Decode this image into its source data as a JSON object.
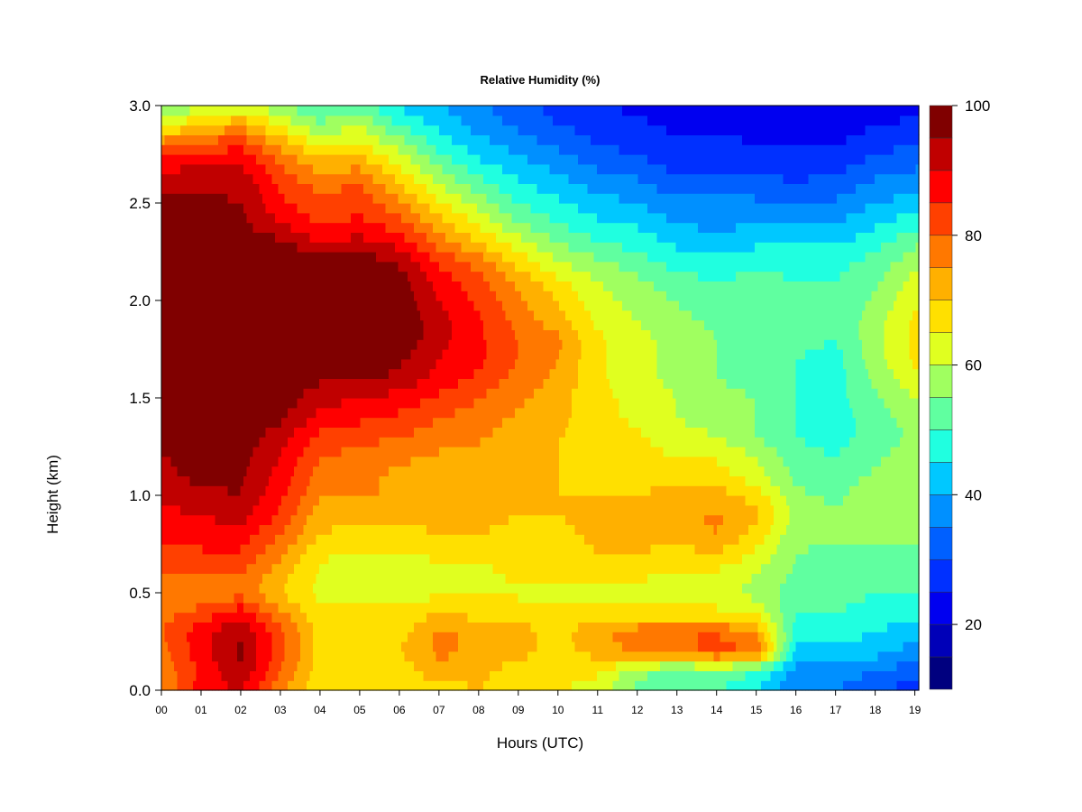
{
  "chart_data": {
    "type": "heatmap",
    "title": "Relative Humidity (%)",
    "xlabel": "Hours (UTC)",
    "ylabel": "Height (km)",
    "xlim": [
      0,
      19.1
    ],
    "ylim": [
      0.0,
      3.0
    ],
    "x_tick_labels": [
      "00",
      "01",
      "02",
      "03",
      "04",
      "05",
      "06",
      "07",
      "08",
      "09",
      "10",
      "11",
      "12",
      "13",
      "14",
      "15",
      "16",
      "17",
      "18",
      "19"
    ],
    "y_tick_labels": [
      "0.0",
      "0.5",
      "1.0",
      "1.5",
      "2.0",
      "2.5",
      "3.0"
    ],
    "colorbar": {
      "range": [
        10,
        100
      ],
      "step": 5,
      "tick_values": [
        20,
        40,
        60,
        80,
        100
      ],
      "tick_labels": [
        "20",
        "40",
        "60",
        "80",
        "100"
      ],
      "colors": [
        "#00007F",
        "#0000B8",
        "#0000F0",
        "#0030FF",
        "#0060FF",
        "#0090FF",
        "#00C8FF",
        "#20FFE0",
        "#60FFA0",
        "#A0FF60",
        "#E0FF20",
        "#FFE000",
        "#FFB000",
        "#FF7800",
        "#FF4000",
        "#FF0000",
        "#C00000",
        "#800000"
      ]
    },
    "heights_km": [
      0.0,
      0.1,
      0.2,
      0.3,
      0.4,
      0.5,
      0.6,
      0.7,
      0.8,
      0.9,
      1.0,
      1.1,
      1.2,
      1.3,
      1.4,
      1.5,
      1.6,
      1.7,
      1.8,
      1.9,
      2.0,
      2.1,
      2.2,
      2.3,
      2.4,
      2.5,
      2.6,
      2.7,
      2.8,
      2.9,
      3.0
    ],
    "hours_utc": [
      0,
      1,
      2,
      3,
      4,
      5,
      6,
      7,
      8,
      9,
      10,
      11,
      12,
      13,
      14,
      15,
      16,
      17,
      18,
      19
    ],
    "rh_percent": [
      [
        75,
        88,
        90,
        76,
        66,
        70,
        66,
        67,
        70,
        66,
        66,
        62,
        54,
        50,
        50,
        45,
        35,
        35,
        30,
        28
      ],
      [
        76,
        86,
        95,
        80,
        67,
        70,
        66,
        74,
        72,
        67,
        66,
        66,
        57,
        52,
        55,
        50,
        38,
        38,
        35,
        32
      ],
      [
        78,
        88,
        96,
        82,
        68,
        69,
        70,
        76,
        74,
        72,
        68,
        72,
        76,
        78,
        82,
        80,
        44,
        42,
        42,
        38
      ],
      [
        80,
        88,
        95,
        82,
        68,
        68,
        68,
        76,
        74,
        72,
        68,
        74,
        78,
        80,
        80,
        74,
        48,
        48,
        45,
        42
      ],
      [
        78,
        82,
        88,
        76,
        66,
        66,
        66,
        70,
        68,
        68,
        66,
        68,
        66,
        66,
        66,
        64,
        50,
        50,
        48,
        46
      ],
      [
        74,
        76,
        78,
        70,
        64,
        62,
        62,
        64,
        64,
        64,
        64,
        64,
        64,
        62,
        62,
        58,
        52,
        52,
        50,
        50
      ],
      [
        80,
        80,
        80,
        72,
        64,
        62,
        62,
        64,
        64,
        66,
        66,
        66,
        66,
        64,
        64,
        60,
        54,
        52,
        52,
        52
      ],
      [
        82,
        84,
        84,
        76,
        66,
        64,
        64,
        66,
        66,
        66,
        66,
        70,
        70,
        68,
        70,
        64,
        55,
        54,
        54,
        54
      ],
      [
        86,
        88,
        88,
        80,
        70,
        68,
        68,
        70,
        70,
        68,
        68,
        72,
        72,
        72,
        75,
        68,
        56,
        56,
        56,
        56
      ],
      [
        88,
        90,
        92,
        84,
        72,
        72,
        72,
        72,
        72,
        70,
        70,
        72,
        72,
        74,
        76,
        72,
        58,
        56,
        56,
        56
      ],
      [
        92,
        94,
        95,
        86,
        76,
        75,
        75,
        72,
        72,
        70,
        70,
        70,
        70,
        72,
        72,
        68,
        56,
        54,
        58,
        60
      ],
      [
        94,
        96,
        96,
        88,
        78,
        76,
        74,
        72,
        72,
        70,
        70,
        68,
        68,
        68,
        68,
        62,
        54,
        52,
        56,
        58
      ],
      [
        95,
        96,
        97,
        90,
        80,
        78,
        76,
        74,
        72,
        70,
        70,
        68,
        68,
        64,
        64,
        60,
        52,
        50,
        54,
        58
      ],
      [
        96,
        98,
        98,
        92,
        84,
        82,
        80,
        78,
        76,
        72,
        70,
        68,
        66,
        62,
        60,
        55,
        50,
        48,
        52,
        56
      ],
      [
        98,
        99,
        99,
        96,
        88,
        86,
        84,
        80,
        78,
        74,
        72,
        66,
        64,
        60,
        58,
        55,
        50,
        48,
        52,
        58
      ],
      [
        99,
        100,
        100,
        98,
        92,
        90,
        88,
        84,
        80,
        76,
        72,
        66,
        64,
        60,
        56,
        55,
        50,
        48,
        54,
        60
      ],
      [
        100,
        100,
        100,
        99,
        96,
        96,
        94,
        88,
        84,
        78,
        74,
        66,
        62,
        58,
        55,
        54,
        50,
        48,
        56,
        64
      ],
      [
        100,
        100,
        100,
        100,
        98,
        98,
        96,
        90,
        86,
        80,
        75,
        66,
        62,
        58,
        55,
        54,
        50,
        48,
        58,
        66
      ],
      [
        100,
        100,
        100,
        100,
        99,
        100,
        99,
        92,
        86,
        80,
        76,
        66,
        62,
        58,
        55,
        55,
        52,
        50,
        58,
        66
      ],
      [
        100,
        100,
        100,
        100,
        100,
        100,
        99,
        92,
        86,
        78,
        72,
        64,
        60,
        56,
        54,
        55,
        52,
        50,
        58,
        66
      ],
      [
        100,
        100,
        100,
        100,
        100,
        100,
        98,
        90,
        84,
        76,
        70,
        62,
        58,
        55,
        52,
        55,
        52,
        50,
        56,
        64
      ],
      [
        100,
        100,
        100,
        100,
        100,
        100,
        98,
        88,
        82,
        74,
        66,
        60,
        56,
        52,
        50,
        52,
        50,
        50,
        54,
        62
      ],
      [
        100,
        100,
        100,
        100,
        98,
        98,
        94,
        84,
        78,
        68,
        60,
        56,
        52,
        48,
        46,
        48,
        48,
        48,
        52,
        58
      ],
      [
        100,
        100,
        99,
        96,
        90,
        92,
        88,
        78,
        70,
        62,
        55,
        50,
        48,
        44,
        42,
        44,
        44,
        44,
        48,
        54
      ],
      [
        98,
        98,
        96,
        90,
        84,
        86,
        82,
        72,
        64,
        55,
        50,
        46,
        44,
        40,
        38,
        40,
        40,
        40,
        44,
        48
      ],
      [
        96,
        96,
        95,
        86,
        82,
        84,
        76,
        66,
        58,
        50,
        46,
        42,
        40,
        36,
        36,
        36,
        36,
        36,
        40,
        42
      ],
      [
        92,
        94,
        94,
        84,
        78,
        80,
        70,
        60,
        52,
        46,
        42,
        38,
        36,
        32,
        32,
        32,
        30,
        32,
        36,
        38
      ],
      [
        88,
        90,
        90,
        80,
        72,
        74,
        64,
        54,
        46,
        42,
        38,
        34,
        32,
        28,
        28,
        28,
        28,
        28,
        32,
        34
      ],
      [
        78,
        82,
        84,
        74,
        64,
        66,
        58,
        48,
        42,
        38,
        34,
        30,
        28,
        26,
        26,
        25,
        25,
        25,
        28,
        30
      ],
      [
        64,
        70,
        74,
        64,
        56,
        60,
        50,
        44,
        38,
        34,
        30,
        28,
        26,
        24,
        24,
        24,
        22,
        22,
        25,
        26
      ],
      [
        55,
        58,
        62,
        56,
        50,
        52,
        44,
        40,
        36,
        32,
        28,
        25,
        24,
        22,
        22,
        22,
        20,
        20,
        22,
        24
      ]
    ]
  }
}
